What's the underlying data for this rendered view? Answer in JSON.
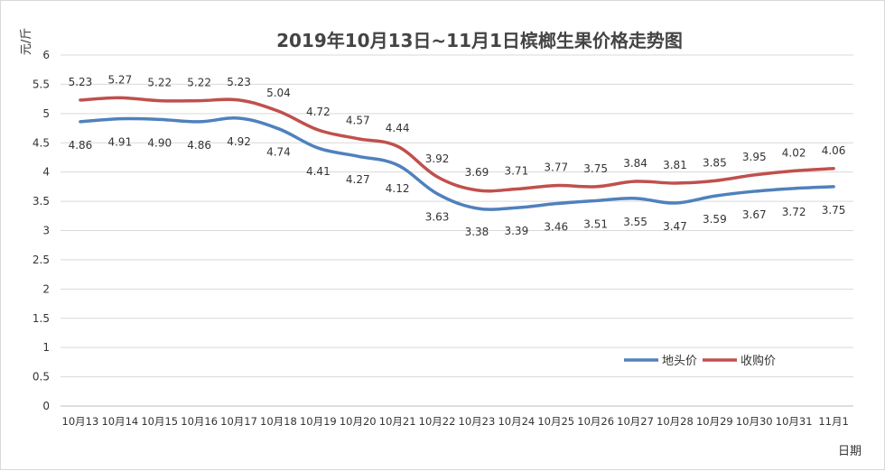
{
  "chart_data": {
    "type": "line",
    "title": "2019年10月13日~11月1日槟榔生果价格走势图",
    "ylabel": "元/斤",
    "xlabel": "日期",
    "ylim": [
      0,
      6
    ],
    "yticks": [
      0,
      0.5,
      1,
      1.5,
      2,
      2.5,
      3,
      3.5,
      4,
      4.5,
      5,
      5.5,
      6
    ],
    "grid": true,
    "legend_position": "bottom-right",
    "categories": [
      "10月13",
      "10月14",
      "10月15",
      "10月16",
      "10月17",
      "10月18",
      "10月19",
      "10月20",
      "10月21",
      "10月22",
      "10月23",
      "10月24",
      "10月25",
      "10月26",
      "10月27",
      "10月28",
      "10月29",
      "10月30",
      "10月31",
      "11月1"
    ],
    "series": [
      {
        "name": "地头价",
        "color": "#4f81bd",
        "values": [
          4.86,
          4.91,
          4.9,
          4.86,
          4.92,
          4.74,
          4.41,
          4.27,
          4.12,
          3.63,
          3.38,
          3.39,
          3.46,
          3.51,
          3.55,
          3.47,
          3.59,
          3.67,
          3.72,
          3.75
        ],
        "labels": [
          "4.86",
          "4.91",
          "4.90",
          "4.86",
          "4.92",
          "4.74",
          "4.41",
          "4.27",
          "4.12",
          "3.63",
          "3.38",
          "3.39",
          "3.46",
          "3.51",
          "3.55",
          "3.47",
          "3.59",
          "3.67",
          "3.72",
          "3.75"
        ]
      },
      {
        "name": "收购价",
        "color": "#c0504d",
        "values": [
          5.23,
          5.27,
          5.22,
          5.22,
          5.23,
          5.04,
          4.72,
          4.57,
          4.44,
          3.92,
          3.69,
          3.71,
          3.77,
          3.75,
          3.84,
          3.81,
          3.85,
          3.95,
          4.02,
          4.06
        ],
        "labels": [
          "5.23",
          "5.27",
          "5.22",
          "5.22",
          "5.23",
          "5.04",
          "4.72",
          "4.57",
          "4.44",
          "3.92",
          "3.69",
          "3.71",
          "3.77",
          "3.75",
          "3.84",
          "3.81",
          "3.85",
          "3.95",
          "4.02",
          "4.06"
        ]
      }
    ]
  }
}
